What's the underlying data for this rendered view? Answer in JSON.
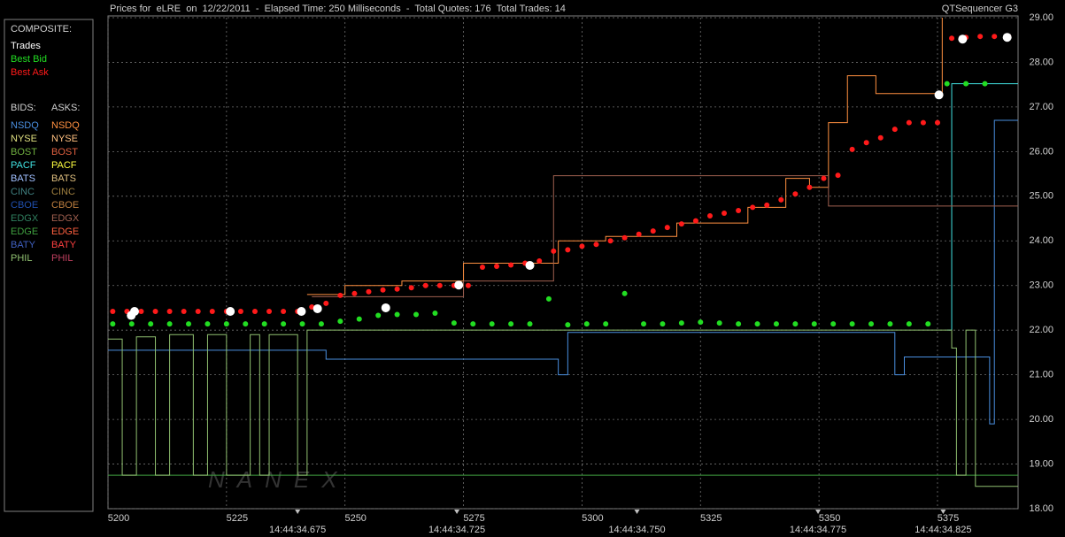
{
  "header": {
    "title": "Prices for  eLRE  on  12/22/2011  -  Elapsed Time: 250 Milliseconds  -  Total Quotes: 176  Total Trades: 14",
    "product": "QTSequencer G3"
  },
  "watermark": "NANEX",
  "chart_data": {
    "type": "scatter",
    "xlim": [
      5200,
      5392
    ],
    "ylim": [
      18,
      29
    ],
    "xticks": [
      5200,
      5225,
      5250,
      5275,
      5300,
      5325,
      5350,
      5375
    ],
    "yticks": [
      {
        "value": 18,
        "label": "18.00"
      },
      {
        "value": 19,
        "label": "19.00"
      },
      {
        "value": 20,
        "label": "20.00"
      },
      {
        "value": 21,
        "label": "21.00"
      },
      {
        "value": 22,
        "label": "22.00"
      },
      {
        "value": 23,
        "label": "23.00"
      },
      {
        "value": 24,
        "label": "24.00"
      },
      {
        "value": 25,
        "label": "25.00"
      },
      {
        "value": 26,
        "label": "26.00"
      },
      {
        "value": 27,
        "label": "27.00"
      },
      {
        "value": 28,
        "label": "28.00"
      },
      {
        "value": 29,
        "label": "29.00"
      }
    ],
    "grid": true,
    "time_marks": [
      {
        "x": 5240,
        "label": "14:44:34.675"
      },
      {
        "x": 5273.6,
        "label": "14:44:34.725"
      },
      {
        "x": 5311.6,
        "label": "14:44:34.750"
      },
      {
        "x": 5349.8,
        "label": "14:44:34.775"
      },
      {
        "x": 5376.2,
        "label": "14:44:34.825"
      }
    ],
    "composite_title": "COMPOSITE:",
    "bids_title": "BIDS:",
    "asks_title": "ASKS:",
    "series": [
      {
        "name": "Trades",
        "color": "#ffffff",
        "x": [
          5204.9,
          5205.6,
          5225.8,
          5240.8,
          5244.2,
          5258.6,
          5274,
          5289,
          5375.3,
          5380.3,
          5389.7
        ],
        "values": [
          22.33,
          22.42,
          22.42,
          22.42,
          22.48,
          22.5,
          23.01,
          23.45,
          27.27,
          28.52,
          28.56
        ]
      },
      {
        "name": "Best Bid",
        "color": "#22dd22",
        "x": [
          5201,
          5205,
          5209,
          5213,
          5217,
          5221,
          5225,
          5229,
          5233,
          5237,
          5241,
          5245,
          5249,
          5253,
          5257,
          5261,
          5265,
          5269,
          5273,
          5277,
          5281,
          5285,
          5289,
          5293,
          5297,
          5301,
          5305,
          5309,
          5313,
          5317,
          5321,
          5325,
          5329,
          5333,
          5337,
          5341,
          5345,
          5349,
          5353,
          5357,
          5361,
          5365,
          5369,
          5373,
          5377,
          5381,
          5385
        ],
        "values": [
          22.14,
          22.14,
          22.14,
          22.14,
          22.14,
          22.14,
          22.14,
          22.14,
          22.14,
          22.14,
          22.14,
          22.14,
          22.2,
          22.25,
          22.33,
          22.35,
          22.35,
          22.38,
          22.16,
          22.14,
          22.14,
          22.14,
          22.14,
          22.7,
          22.12,
          22.14,
          22.14,
          22.82,
          22.14,
          22.14,
          22.16,
          22.18,
          22.16,
          22.14,
          22.14,
          22.14,
          22.14,
          22.14,
          22.14,
          22.14,
          22.14,
          22.14,
          22.14,
          22.14,
          27.52,
          27.52,
          27.52
        ]
      },
      {
        "name": "Best Ask",
        "color": "#ff1a1a",
        "x": [
          5201,
          5204,
          5207,
          5210,
          5213,
          5216,
          5219,
          5222,
          5225,
          5228,
          5231,
          5234,
          5237,
          5240,
          5243,
          5246,
          5249,
          5252,
          5255,
          5258,
          5261,
          5264,
          5267,
          5270,
          5273,
          5276,
          5279,
          5282,
          5285,
          5288,
          5291,
          5294,
          5297,
          5300,
          5303,
          5306,
          5309,
          5312,
          5315,
          5318,
          5321,
          5324,
          5327,
          5330,
          5333,
          5336,
          5339,
          5342,
          5345,
          5348,
          5351,
          5354,
          5357,
          5360,
          5363,
          5366,
          5369,
          5372,
          5375,
          5378,
          5381,
          5384,
          5387,
          5390
        ],
        "values": [
          22.42,
          22.42,
          22.42,
          22.42,
          22.42,
          22.42,
          22.42,
          22.42,
          22.42,
          22.42,
          22.42,
          22.42,
          22.42,
          22.42,
          22.52,
          22.6,
          22.78,
          22.82,
          22.86,
          22.9,
          22.92,
          22.95,
          23.0,
          23.0,
          23.0,
          23.0,
          23.41,
          23.43,
          23.46,
          23.5,
          23.55,
          23.77,
          23.8,
          23.88,
          23.92,
          24.0,
          24.07,
          24.15,
          24.22,
          24.3,
          24.38,
          24.45,
          24.56,
          24.62,
          24.68,
          24.75,
          24.8,
          24.92,
          25.05,
          25.2,
          25.4,
          25.47,
          26.05,
          26.2,
          26.31,
          26.5,
          26.65,
          26.65,
          26.65,
          28.54,
          28.56,
          28.58,
          28.58,
          28.58
        ]
      }
    ],
    "bids": [
      {
        "name": "NSDQ",
        "color": "#4a8fe0",
        "x": [
          5200,
          5246,
          5295,
          5297,
          5366,
          5368,
          5384,
          5386,
          5387,
          5392
        ],
        "values": [
          21.55,
          21.35,
          21.0,
          21.95,
          21.0,
          21.4,
          21.4,
          19.9,
          26.7,
          26.7
        ]
      },
      {
        "name": "NYSE",
        "color": "#e0e080"
      },
      {
        "name": "BOST",
        "color": "#70b040"
      },
      {
        "name": "PACF",
        "color": "#40e0e0",
        "x": [
          5377,
          5378,
          5392
        ],
        "values": [
          22.0,
          27.52,
          27.52
        ]
      },
      {
        "name": "BATS",
        "color": "#a0c0ff"
      },
      {
        "name": "CINC",
        "color": "#408080"
      },
      {
        "name": "CBOE",
        "color": "#2050b0"
      },
      {
        "name": "EDGX",
        "color": "#308060"
      },
      {
        "name": "EDGE",
        "color": "#40a040",
        "x": [
          5200,
          5392
        ],
        "values": [
          18.75,
          18.75
        ]
      },
      {
        "name": "BATY",
        "color": "#4060c0"
      },
      {
        "name": "PHIL",
        "color": "#90c070",
        "x": [
          5200,
          5203,
          5206,
          5210,
          5213,
          5218,
          5221,
          5225,
          5230,
          5232,
          5234,
          5240,
          5242,
          5376,
          5378,
          5379,
          5381,
          5383,
          5392
        ],
        "values": [
          21.8,
          18.75,
          21.85,
          18.75,
          21.9,
          18.75,
          21.9,
          18.75,
          21.9,
          18.75,
          21.9,
          18.75,
          22.0,
          22.0,
          21.6,
          18.75,
          22.0,
          18.5,
          18.5
        ]
      }
    ],
    "asks": [
      {
        "name": "NSDQ",
        "color": "#ff9040",
        "x": [
          5242,
          5250,
          5262,
          5275,
          5295,
          5305,
          5320,
          5335,
          5343,
          5348,
          5352,
          5356,
          5362,
          5372,
          5376
        ],
        "values": [
          22.8,
          23.0,
          23.1,
          23.5,
          24.0,
          24.1,
          24.4,
          24.75,
          25.4,
          25.2,
          26.65,
          27.7,
          27.3,
          27.3,
          29.0
        ]
      },
      {
        "name": "NYSE",
        "color": "#ffc080"
      },
      {
        "name": "BOST",
        "color": "#e06040"
      },
      {
        "name": "PACF",
        "color": "#ffff40"
      },
      {
        "name": "BATS",
        "color": "#e0c080"
      },
      {
        "name": "CINC",
        "color": "#a08040"
      },
      {
        "name": "CBOE",
        "color": "#c08040"
      },
      {
        "name": "EDGX",
        "color": "#a06050",
        "x": [
          5243,
          5275,
          5294,
          5350,
          5352,
          5392
        ],
        "values": [
          22.75,
          23.1,
          25.46,
          25.46,
          24.78,
          24.78
        ]
      },
      {
        "name": "EDGE",
        "color": "#ff6040"
      },
      {
        "name": "BATY",
        "color": "#ff4040"
      },
      {
        "name": "PHIL",
        "color": "#c04060"
      }
    ]
  }
}
